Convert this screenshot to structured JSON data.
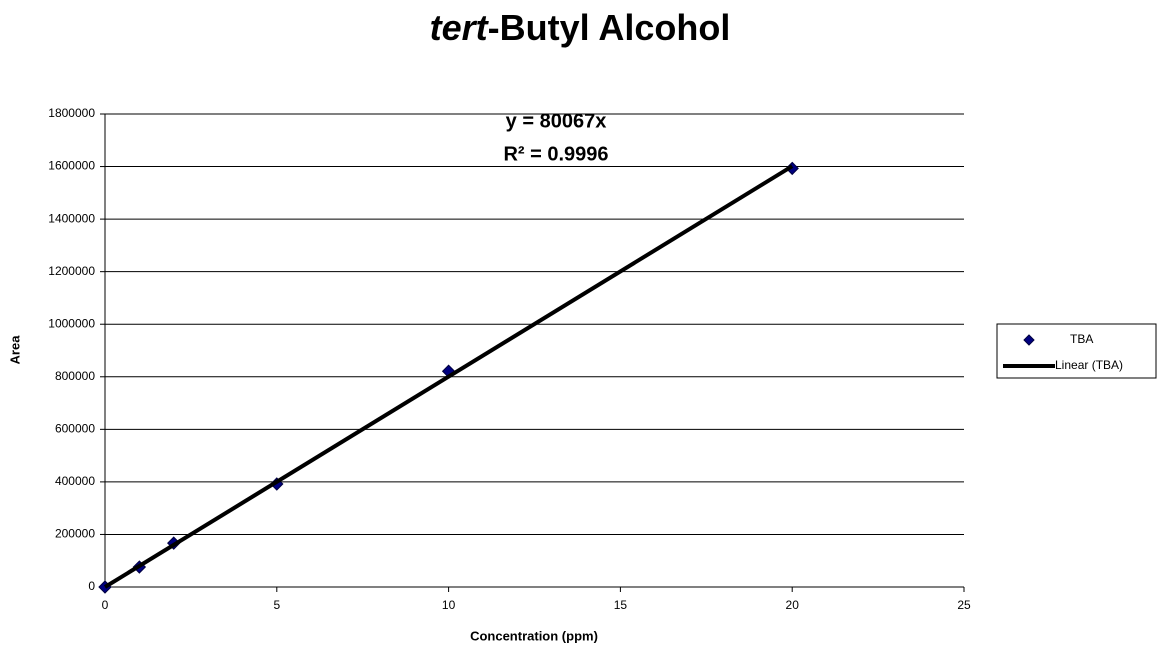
{
  "chart_data": {
    "type": "scatter",
    "title": [
      "tert",
      "-Butyl Alcohol"
    ],
    "x_label": "Concentration (ppm)",
    "y_label": "Area",
    "annotations": [
      "y = 80067x",
      "R² = 0.9996"
    ],
    "series": [
      {
        "name": "TBA",
        "color": "#000080",
        "x": [
          0,
          1,
          2,
          5,
          10,
          20
        ],
        "values": [
          0,
          76000,
          167000,
          392000,
          821000,
          1593000
        ]
      },
      {
        "name": "Linear (TBA)",
        "type": "line",
        "color": "#000000",
        "x": [
          0,
          20
        ],
        "values": [
          0,
          1601340
        ]
      }
    ],
    "xlim": [
      0,
      25
    ],
    "xticks": [
      0,
      5,
      10,
      15,
      20,
      25
    ],
    "ylim": [
      0,
      1800000
    ],
    "yticks": [
      0,
      200000,
      400000,
      600000,
      800000,
      1000000,
      1200000,
      1400000,
      1600000,
      1800000
    ],
    "grid": true,
    "legend": "right"
  }
}
